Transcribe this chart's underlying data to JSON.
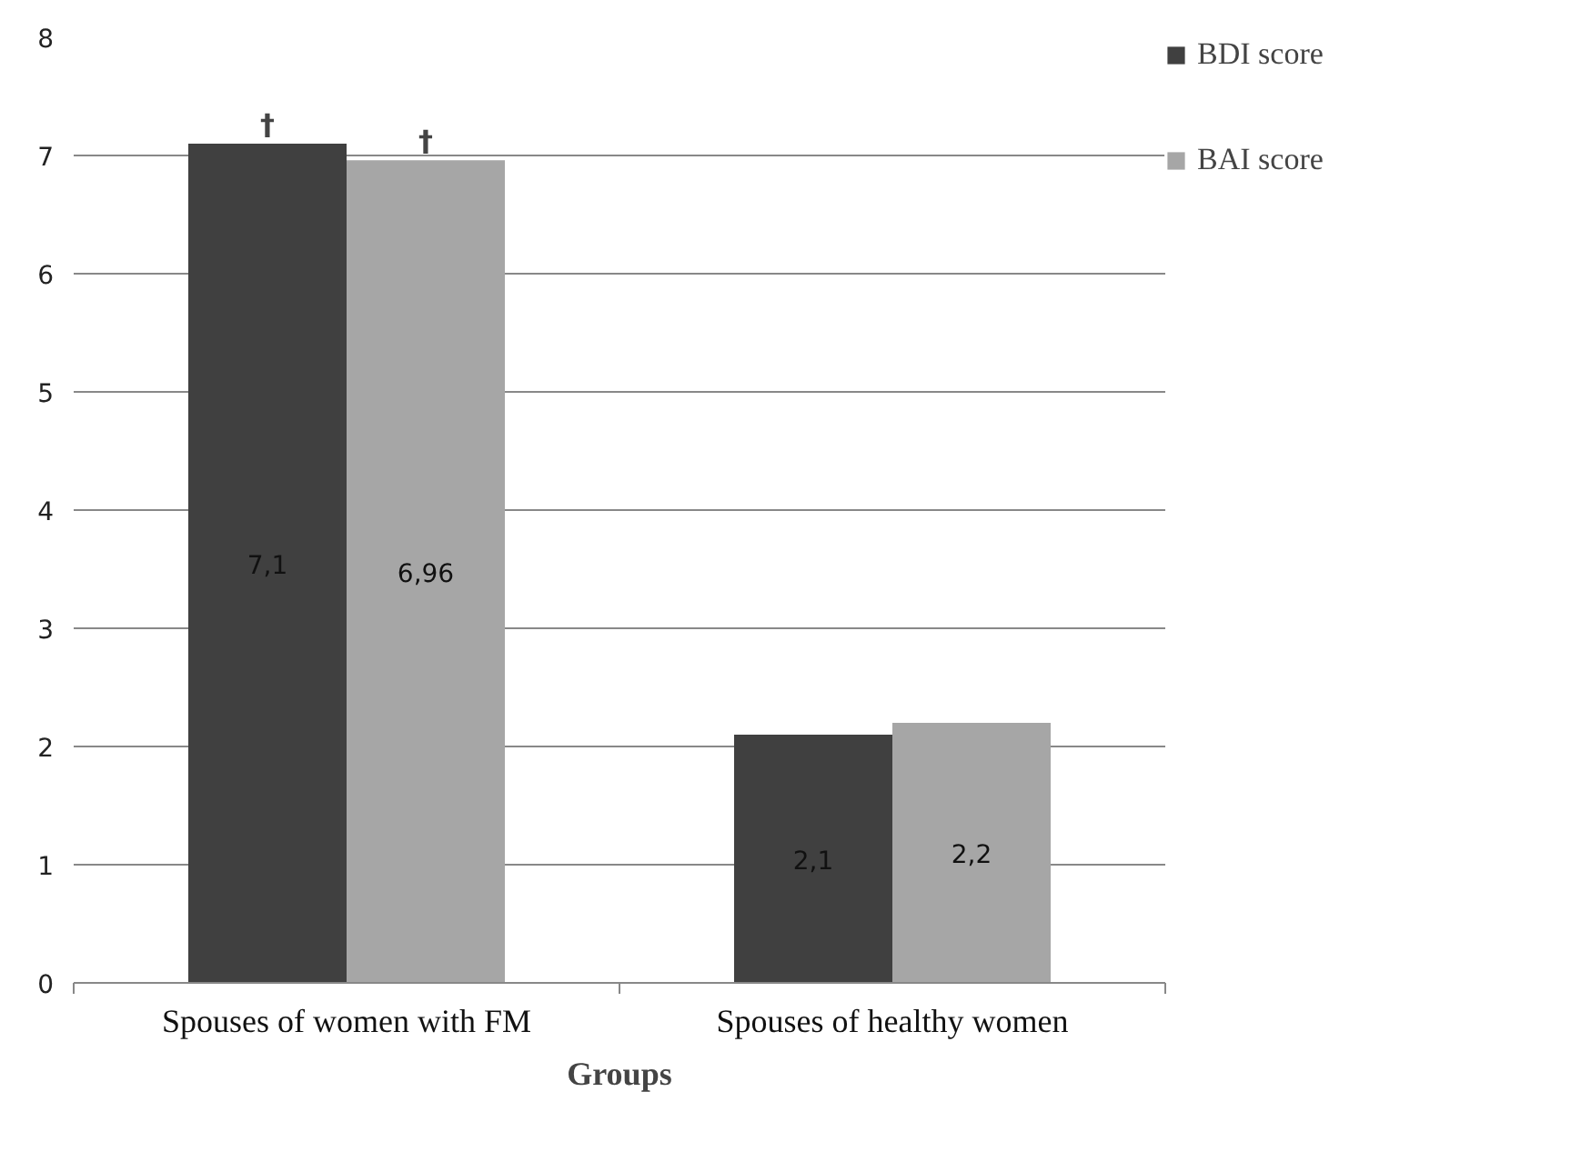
{
  "chart_data": {
    "type": "bar",
    "xlabel": "Groups",
    "categories": [
      "Spouses of women with FM",
      "Spouses of healthy women"
    ],
    "series": [
      {
        "name": "BDI score",
        "color": "#404040",
        "values": [
          7.1,
          2.1
        ],
        "value_labels": [
          "7,1",
          "2,1"
        ]
      },
      {
        "name": "BAI score",
        "color": "#a6a6a6",
        "values": [
          6.96,
          2.2
        ],
        "value_labels": [
          "6,96",
          "2,2"
        ]
      }
    ],
    "annotations": [
      "†",
      "†"
    ],
    "ylim": [
      0,
      8
    ],
    "yticks": [
      0,
      1,
      2,
      3,
      4,
      5,
      6,
      7,
      8
    ],
    "grid": "y",
    "legend": "right"
  }
}
